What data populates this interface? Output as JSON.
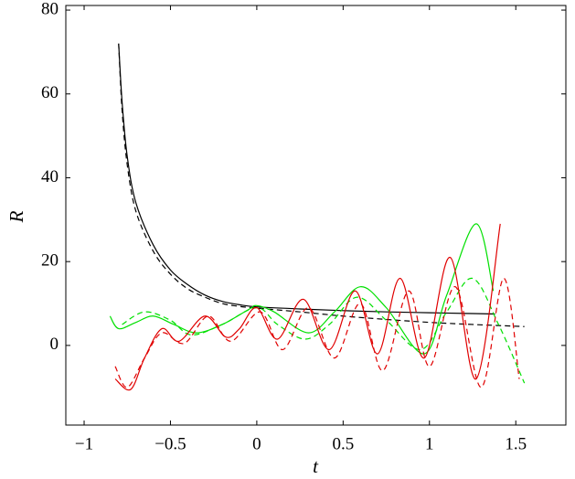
{
  "chart_data": {
    "type": "line",
    "x_label": "t",
    "y_label": "R",
    "xlim": [
      -1.106,
      1.79
    ],
    "ylim": [
      -19,
      81.1
    ],
    "xticks": [
      {
        "value": -1,
        "label": "−1"
      },
      {
        "value": -0.5,
        "label": "−0.5"
      },
      0,
      0.5,
      1,
      1.5
    ],
    "yticks": [
      0,
      20,
      40,
      60,
      80
    ],
    "grid": false,
    "series": [
      {
        "color": "#000000",
        "dash": false,
        "x": [
          -0.8,
          -0.78,
          -0.75,
          -0.7,
          -0.6,
          -0.5,
          -0.4,
          -0.3,
          -0.2,
          -0.1,
          0,
          0.25,
          0.5,
          0.75,
          1,
          1.25,
          1.38
        ],
        "values": [
          72,
          58,
          45,
          34,
          24,
          18,
          14.5,
          12,
          10.5,
          9.7,
          9.2,
          8.7,
          8.3,
          8,
          7.8,
          7.6,
          7.5
        ]
      },
      {
        "color": "#000000",
        "dash": true,
        "x": [
          -0.8,
          -0.78,
          -0.75,
          -0.7,
          -0.6,
          -0.5,
          -0.4,
          -0.3,
          -0.2,
          -0.1,
          0,
          0.25,
          0.5,
          0.75,
          1,
          1.25,
          1.55
        ],
        "values": [
          72,
          56,
          43,
          32,
          22.5,
          17,
          13.5,
          11.5,
          10,
          9.3,
          8.9,
          8,
          7,
          6.2,
          5.5,
          5,
          4.5
        ]
      },
      {
        "color": "#00e000",
        "dash": false,
        "x": [
          -0.85,
          -0.8,
          -0.7,
          -0.6,
          -0.48,
          -0.35,
          -0.2,
          -0.05,
          0,
          0.1,
          0.3,
          0.45,
          0.6,
          0.75,
          0.97,
          1.1,
          1.27,
          1.37
        ],
        "values": [
          7,
          4,
          5.5,
          7,
          5,
          3,
          5,
          8.5,
          9.5,
          8,
          3,
          8,
          14,
          9,
          -2,
          12,
          29,
          13
        ]
      },
      {
        "color": "#00e000",
        "dash": true,
        "x": [
          -0.78,
          -0.65,
          -0.5,
          -0.38,
          -0.2,
          0,
          0.12,
          0.28,
          0.42,
          0.58,
          0.75,
          0.95,
          1.1,
          1.25,
          1.4,
          1.55
        ],
        "values": [
          5,
          8,
          6,
          2.5,
          5,
          9,
          5,
          1.5,
          5,
          11.5,
          6,
          -1,
          8,
          16,
          5,
          -9
        ]
      },
      {
        "color": "#e00000",
        "dash": false,
        "x": [
          -0.82,
          -0.73,
          -0.65,
          -0.55,
          -0.45,
          -0.3,
          -0.18,
          -0.1,
          0,
          0.12,
          0.27,
          0.42,
          0.57,
          0.7,
          0.83,
          0.97,
          1.12,
          1.27,
          1.41
        ],
        "values": [
          -8,
          -10.5,
          -3,
          4,
          1,
          7,
          2,
          4,
          9,
          1.5,
          11,
          -1,
          13,
          -2,
          16,
          -3,
          21,
          -8,
          29
        ]
      },
      {
        "color": "#e00000",
        "dash": true,
        "x": [
          -0.82,
          -0.75,
          -0.65,
          -0.55,
          -0.42,
          -0.28,
          -0.15,
          0.02,
          0.15,
          0.3,
          0.45,
          0.6,
          0.73,
          0.88,
          1,
          1.15,
          1.3,
          1.43,
          1.52
        ],
        "values": [
          -5,
          -10,
          -3,
          3,
          0.5,
          7,
          1,
          8,
          -1,
          9,
          -3,
          10,
          -6,
          13,
          -5,
          14,
          -10,
          16,
          -8
        ]
      }
    ]
  }
}
